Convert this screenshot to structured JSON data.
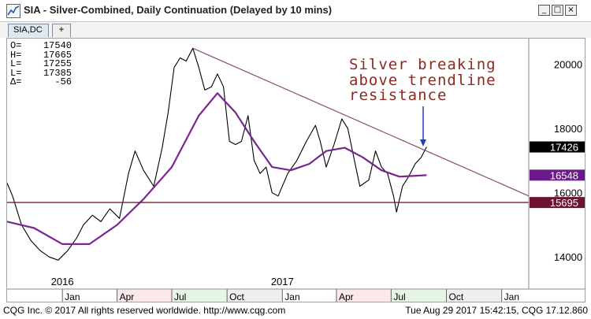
{
  "window": {
    "title": "SIA - Silver-Combined, Daily Continuation (Delayed by 10 mins)",
    "minimize": "_",
    "maximize": "□",
    "close": "×",
    "app_icon": "cqg-chart-icon"
  },
  "tabs": [
    {
      "label": "SIA,DC"
    },
    {
      "label": "+"
    }
  ],
  "stats": [
    {
      "label": "O=",
      "value": "17540"
    },
    {
      "label": "H=",
      "value": "17665"
    },
    {
      "label": "L=",
      "value": "17255"
    },
    {
      "label": "L=",
      "value": "17385"
    },
    {
      "label": "Δ=",
      "value": "-56"
    }
  ],
  "annotation": {
    "lines": [
      "Silver breaking",
      "above trendline",
      "resistance"
    ]
  },
  "colors": {
    "price_line": "#000000",
    "moving_average": "#7a2590",
    "trendline": "#8a4a7a",
    "support_line": "#7a1f42",
    "annotation_text": "#8b2a20",
    "arrow": "#2040c0",
    "last_price_badge": "#000000",
    "ma_badge": "#6a1a8a",
    "support_badge": "#6e1232"
  },
  "chart_data": {
    "type": "line",
    "y_axis": {
      "range": [
        13000,
        20800
      ],
      "tick_labels": [
        "20000",
        "18000",
        "16000",
        "14000"
      ],
      "tick_values": [
        20000,
        18000,
        16000,
        14000
      ]
    },
    "year_labels": [
      {
        "label": "2016",
        "date": "2016-01-01"
      },
      {
        "label": "2017",
        "date": "2017-01-01"
      }
    ],
    "x_range": [
      "2015-10-01",
      "2018-02-15"
    ],
    "month_labels": [
      {
        "label": "Jan",
        "date": "2016-01-01"
      },
      {
        "label": "Apr",
        "date": "2016-04-01"
      },
      {
        "label": "Jul",
        "date": "2016-07-01"
      },
      {
        "label": "Oct",
        "date": "2016-10-01"
      },
      {
        "label": "Jan",
        "date": "2017-01-01"
      },
      {
        "label": "Apr",
        "date": "2017-04-01"
      },
      {
        "label": "Jul",
        "date": "2017-07-01"
      },
      {
        "label": "Oct",
        "date": "2017-10-01"
      },
      {
        "label": "Jan",
        "date": "2018-01-01"
      }
    ],
    "price_badges": [
      {
        "label": "17426",
        "value": 17426,
        "role": "last"
      },
      {
        "label": "16548",
        "value": 16548,
        "role": "moving_average"
      },
      {
        "label": "15695",
        "value": 15695,
        "role": "support"
      }
    ],
    "series": [
      {
        "role": "price",
        "points": [
          [
            "2015-10-01",
            16300
          ],
          [
            "2015-10-10",
            15900
          ],
          [
            "2015-10-25",
            15000
          ],
          [
            "2015-11-10",
            14500
          ],
          [
            "2015-11-25",
            14200
          ],
          [
            "2015-12-10",
            14000
          ],
          [
            "2015-12-25",
            13900
          ],
          [
            "2016-01-10",
            14200
          ],
          [
            "2016-01-25",
            14600
          ],
          [
            "2016-02-05",
            15000
          ],
          [
            "2016-02-20",
            15300
          ],
          [
            "2016-03-05",
            15100
          ],
          [
            "2016-03-20",
            15500
          ],
          [
            "2016-04-05",
            15200
          ],
          [
            "2016-04-20",
            16600
          ],
          [
            "2016-05-01",
            17300
          ],
          [
            "2016-05-15",
            16700
          ],
          [
            "2016-06-01",
            16200
          ],
          [
            "2016-06-15",
            17400
          ],
          [
            "2016-06-25",
            18500
          ],
          [
            "2016-07-05",
            19900
          ],
          [
            "2016-07-15",
            20200
          ],
          [
            "2016-07-25",
            20100
          ],
          [
            "2016-08-05",
            20500
          ],
          [
            "2016-08-15",
            19900
          ],
          [
            "2016-08-25",
            19200
          ],
          [
            "2016-09-05",
            19300
          ],
          [
            "2016-09-15",
            19700
          ],
          [
            "2016-09-25",
            19300
          ],
          [
            "2016-10-05",
            17600
          ],
          [
            "2016-10-15",
            17500
          ],
          [
            "2016-10-25",
            17600
          ],
          [
            "2016-11-05",
            18400
          ],
          [
            "2016-11-15",
            17000
          ],
          [
            "2016-11-25",
            16600
          ],
          [
            "2016-12-05",
            16800
          ],
          [
            "2016-12-15",
            16000
          ],
          [
            "2016-12-25",
            15900
          ],
          [
            "2017-01-10",
            16600
          ],
          [
            "2017-01-25",
            17000
          ],
          [
            "2017-02-10",
            17600
          ],
          [
            "2017-02-25",
            18100
          ],
          [
            "2017-03-05",
            17600
          ],
          [
            "2017-03-15",
            16800
          ],
          [
            "2017-03-28",
            17500
          ],
          [
            "2017-04-10",
            18300
          ],
          [
            "2017-04-20",
            18000
          ],
          [
            "2017-05-01",
            17000
          ],
          [
            "2017-05-10",
            16200
          ],
          [
            "2017-05-25",
            16400
          ],
          [
            "2017-06-05",
            17300
          ],
          [
            "2017-06-15",
            16800
          ],
          [
            "2017-06-25",
            16600
          ],
          [
            "2017-07-05",
            15900
          ],
          [
            "2017-07-10",
            15400
          ],
          [
            "2017-07-20",
            16200
          ],
          [
            "2017-07-30",
            16500
          ],
          [
            "2017-08-10",
            16900
          ],
          [
            "2017-08-20",
            17100
          ],
          [
            "2017-08-29",
            17426
          ]
        ]
      },
      {
        "role": "moving_average",
        "points": [
          [
            "2015-10-01",
            15100
          ],
          [
            "2015-11-15",
            14900
          ],
          [
            "2016-01-01",
            14400
          ],
          [
            "2016-02-15",
            14400
          ],
          [
            "2016-04-01",
            15000
          ],
          [
            "2016-05-15",
            15800
          ],
          [
            "2016-07-01",
            16800
          ],
          [
            "2016-08-15",
            18400
          ],
          [
            "2016-09-15",
            19100
          ],
          [
            "2016-10-15",
            18500
          ],
          [
            "2016-11-15",
            17600
          ],
          [
            "2016-12-15",
            16800
          ],
          [
            "2017-01-15",
            16700
          ],
          [
            "2017-02-15",
            16900
          ],
          [
            "2017-03-15",
            17300
          ],
          [
            "2017-04-15",
            17400
          ],
          [
            "2017-05-15",
            17100
          ],
          [
            "2017-06-15",
            16700
          ],
          [
            "2017-07-15",
            16500
          ],
          [
            "2017-08-29",
            16548
          ]
        ]
      },
      {
        "role": "trendline",
        "points": [
          [
            "2016-08-05",
            20500
          ],
          [
            "2018-02-15",
            15900
          ]
        ]
      },
      {
        "role": "support",
        "points": [
          [
            "2015-10-01",
            15695
          ],
          [
            "2018-02-15",
            15695
          ]
        ]
      }
    ]
  },
  "status": {
    "left": "CQG Inc. © 2017 All rights reserved worldwide. http://www.cqg.com",
    "right": "Tue Aug 29 2017 15:42:15, CQG 17.12.860"
  }
}
